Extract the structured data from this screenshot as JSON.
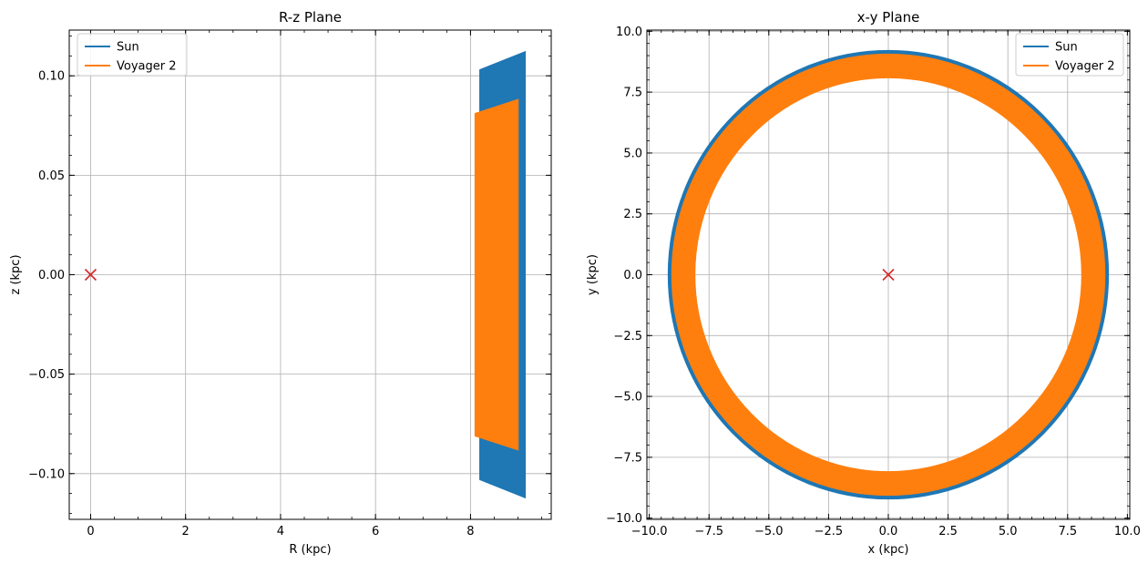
{
  "chart_data": [
    {
      "type": "line",
      "title": "R-z Plane",
      "xlabel": "R (kpc)",
      "ylabel": "z (kpc)",
      "xlim": [
        -0.45,
        9.7
      ],
      "ylim": [
        -0.123,
        0.123
      ],
      "x_ticks": [
        0,
        2,
        4,
        6,
        8
      ],
      "x_tick_labels": [
        "0",
        "2",
        "4",
        "6",
        "8"
      ],
      "y_ticks": [
        -0.1,
        -0.05,
        0.0,
        0.05,
        0.1
      ],
      "y_tick_labels": [
        "−0.10",
        "−0.05",
        "0.00",
        "0.05",
        "0.10"
      ],
      "grid": true,
      "legend_position": "upper left",
      "series": [
        {
          "name": "Sun",
          "color": "#1f77b4",
          "description_shape": "band",
          "R_min": [
            8.2,
            9.15
          ],
          "z_top": [
            0.103,
            0.112
          ],
          "z_bottom": [
            -0.103,
            -0.112
          ]
        },
        {
          "name": "Voyager 2",
          "color": "#ff7f0e",
          "description_shape": "band",
          "R_min": [
            8.1,
            9.0
          ],
          "z_top": [
            0.081,
            0.088
          ],
          "z_bottom": [
            -0.081,
            -0.088
          ]
        }
      ],
      "center_marker": {
        "x": 0,
        "y": 0,
        "symbol": "x",
        "color": "#d62728"
      }
    },
    {
      "type": "line",
      "title": "x-y Plane",
      "xlabel": "x (kpc)",
      "ylabel": "y (kpc)",
      "xlim": [
        -10.1,
        10.1
      ],
      "ylim": [
        -10.05,
        10.05
      ],
      "x_ticks": [
        -10.0,
        -7.5,
        -5.0,
        -2.5,
        0.0,
        2.5,
        5.0,
        7.5,
        10.0
      ],
      "x_tick_labels": [
        "−10.0",
        "−7.5",
        "−5.0",
        "−2.5",
        "0.0",
        "2.5",
        "5.0",
        "7.5",
        "10.0"
      ],
      "y_ticks": [
        -10.0,
        -7.5,
        -5.0,
        -2.5,
        0.0,
        2.5,
        5.0,
        7.5,
        10.0
      ],
      "y_tick_labels": [
        "−10.0",
        "−7.5",
        "−5.0",
        "−2.5",
        "0.0",
        "2.5",
        "5.0",
        "7.5",
        "10.0"
      ],
      "grid": true,
      "legend_position": "upper right",
      "series": [
        {
          "name": "Sun",
          "color": "#1f77b4",
          "description_shape": "annulus",
          "r_inner": 8.2,
          "r_outer": 9.2
        },
        {
          "name": "Voyager 2",
          "color": "#ff7f0e",
          "description_shape": "annulus",
          "r_inner": 8.1,
          "r_outer": 9.05
        }
      ],
      "center_marker": {
        "x": 0,
        "y": 0,
        "symbol": "x",
        "color": "#d62728"
      }
    }
  ]
}
